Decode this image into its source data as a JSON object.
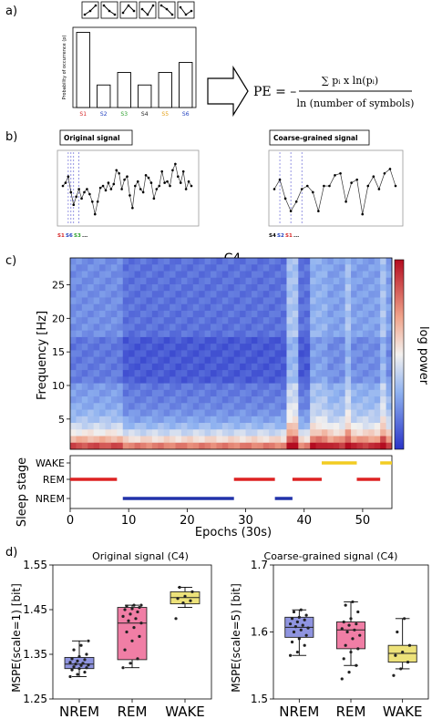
{
  "panels": {
    "a": "a)",
    "b": "b)",
    "c": "c)",
    "d": "d)"
  },
  "colors": {
    "s1": "#d62728",
    "s2": "#1f3fbf",
    "s3": "#2ca02c",
    "s4": "#222222",
    "s5": "#e6a117",
    "s6": "#1f3fbf",
    "nrem": "#8f94e0",
    "rem": "#f07ea5",
    "wake": "#ede27a",
    "nrem_bar": "#2233aa",
    "rem_bar": "#dd2222",
    "wake_bar": "#f2cc22"
  },
  "chart_data": [
    {
      "id": "pattern-probabilities",
      "type": "bar",
      "ylabel": "Probability of occurrence (p)",
      "categories": [
        "S1",
        "S2",
        "S3",
        "S4",
        "S5",
        "S6"
      ],
      "values": [
        0.3,
        0.09,
        0.14,
        0.09,
        0.14,
        0.18
      ],
      "ylim": [
        0,
        0.32
      ],
      "motif_icons": [
        "rising-left",
        "falling-peak",
        "rising",
        "valley",
        "falling",
        "falling-right"
      ]
    },
    {
      "id": "pe-formula",
      "type": "table",
      "lhs": "PE = –",
      "numerator": "∑ pᵢ x ln(pᵢ)",
      "denominator": "ln (number of symbols)"
    },
    {
      "id": "original-signal",
      "type": "line",
      "title": "Original signal",
      "values": [
        0.55,
        0.6,
        0.7,
        0.45,
        0.25,
        0.38,
        0.5,
        0.35,
        0.45,
        0.5,
        0.42,
        0.3,
        0.1,
        0.3,
        0.52,
        0.55,
        0.48,
        0.6,
        0.5,
        0.58,
        0.8,
        0.75,
        0.5,
        0.65,
        0.7,
        0.4,
        0.2,
        0.55,
        0.62,
        0.5,
        0.45,
        0.72,
        0.68,
        0.6,
        0.35,
        0.5,
        0.55,
        0.78,
        0.6,
        0.62,
        0.55,
        0.8,
        0.9,
        0.7,
        0.6,
        0.78,
        0.5,
        0.62,
        0.55
      ],
      "legend": [
        "S1",
        "S6",
        "S3",
        "..."
      ]
    },
    {
      "id": "coarse-grained-signal",
      "type": "line",
      "title": "Coarse-grained signal",
      "values": [
        0.5,
        0.65,
        0.35,
        0.15,
        0.3,
        0.5,
        0.55,
        0.45,
        0.15,
        0.55,
        0.55,
        0.72,
        0.75,
        0.3,
        0.6,
        0.65,
        0.1,
        0.55,
        0.7,
        0.5,
        0.75,
        0.82,
        0.55
      ],
      "legend": [
        "S4",
        "S2",
        "S1",
        "..."
      ]
    },
    {
      "id": "spectrogram",
      "type": "heatmap",
      "title": "C4",
      "ylabel": "Frequency [Hz]",
      "colorbar_label": "log power",
      "yticks": [
        5,
        10,
        15,
        20,
        25
      ],
      "ylim": [
        0.5,
        29
      ],
      "xlim": [
        0,
        55
      ]
    },
    {
      "id": "hypnogram",
      "type": "bar",
      "ylabel": "Sleep stage",
      "xlabel": "Epochs (30s)",
      "xticks": [
        0,
        10,
        20,
        30,
        40,
        50
      ],
      "xlim": [
        0,
        55
      ],
      "categories": [
        "WAKE",
        "REM",
        "NREM"
      ],
      "segments": [
        {
          "stage": "REM",
          "start": 0,
          "end": 8
        },
        {
          "stage": "NREM",
          "start": 9,
          "end": 28
        },
        {
          "stage": "REM",
          "start": 28,
          "end": 35
        },
        {
          "stage": "NREM",
          "start": 35,
          "end": 38
        },
        {
          "stage": "REM",
          "start": 38,
          "end": 43
        },
        {
          "stage": "WAKE",
          "start": 43,
          "end": 49
        },
        {
          "stage": "REM",
          "start": 49,
          "end": 53
        },
        {
          "stage": "WAKE",
          "start": 53,
          "end": 55
        }
      ]
    },
    {
      "id": "boxplot-original",
      "type": "box",
      "title": "Original signal (C4)",
      "ylabel": "MSPE(scale=1) [bit]",
      "categories": [
        "NREM",
        "REM",
        "WAKE"
      ],
      "ylim": [
        1.25,
        1.55
      ],
      "yticks": [
        "1.25",
        "1.35",
        "1.45",
        "1.55"
      ],
      "boxes": [
        {
          "min": 1.3,
          "q1": 1.318,
          "median": 1.328,
          "q3": 1.343,
          "max": 1.38
        },
        {
          "min": 1.32,
          "q1": 1.338,
          "median": 1.42,
          "q3": 1.455,
          "max": 1.46
        },
        {
          "min": 1.455,
          "q1": 1.463,
          "median": 1.477,
          "q3": 1.49,
          "max": 1.5
        }
      ],
      "points": [
        [
          1.3,
          1.305,
          1.31,
          1.315,
          1.318,
          1.32,
          1.322,
          1.325,
          1.326,
          1.328,
          1.33,
          1.332,
          1.335,
          1.338,
          1.34,
          1.345,
          1.35,
          1.36,
          1.37,
          1.38
        ],
        [
          1.32,
          1.33,
          1.34,
          1.36,
          1.38,
          1.39,
          1.4,
          1.41,
          1.42,
          1.425,
          1.43,
          1.435,
          1.44,
          1.445,
          1.45,
          1.452,
          1.455,
          1.458,
          1.46,
          1.46
        ],
        [
          1.43,
          1.465,
          1.47,
          1.475,
          1.48,
          1.49,
          1.5
        ]
      ]
    },
    {
      "id": "boxplot-coarse",
      "type": "box",
      "title": "Coarse-grained signal (C4)",
      "ylabel": "MSPE(scale=5) [bit]",
      "categories": [
        "NREM",
        "REM",
        "WAKE"
      ],
      "ylim": [
        1.5,
        1.7
      ],
      "yticks": [
        "1.5",
        "1.6",
        "1.7"
      ],
      "boxes": [
        {
          "min": 1.565,
          "q1": 1.592,
          "median": 1.607,
          "q3": 1.622,
          "max": 1.633
        },
        {
          "min": 1.55,
          "q1": 1.575,
          "median": 1.603,
          "q3": 1.615,
          "max": 1.645
        },
        {
          "min": 1.545,
          "q1": 1.555,
          "median": 1.568,
          "q3": 1.58,
          "max": 1.62
        }
      ],
      "points": [
        [
          1.565,
          1.57,
          1.58,
          1.585,
          1.59,
          1.595,
          1.6,
          1.603,
          1.606,
          1.608,
          1.61,
          1.612,
          1.615,
          1.618,
          1.62,
          1.622,
          1.625,
          1.63,
          1.633
        ],
        [
          1.53,
          1.54,
          1.55,
          1.56,
          1.57,
          1.575,
          1.58,
          1.59,
          1.595,
          1.6,
          1.603,
          1.605,
          1.61,
          1.612,
          1.615,
          1.62,
          1.63,
          1.64,
          1.645
        ],
        [
          1.535,
          1.545,
          1.555,
          1.565,
          1.57,
          1.58,
          1.6,
          1.62
        ]
      ]
    }
  ]
}
